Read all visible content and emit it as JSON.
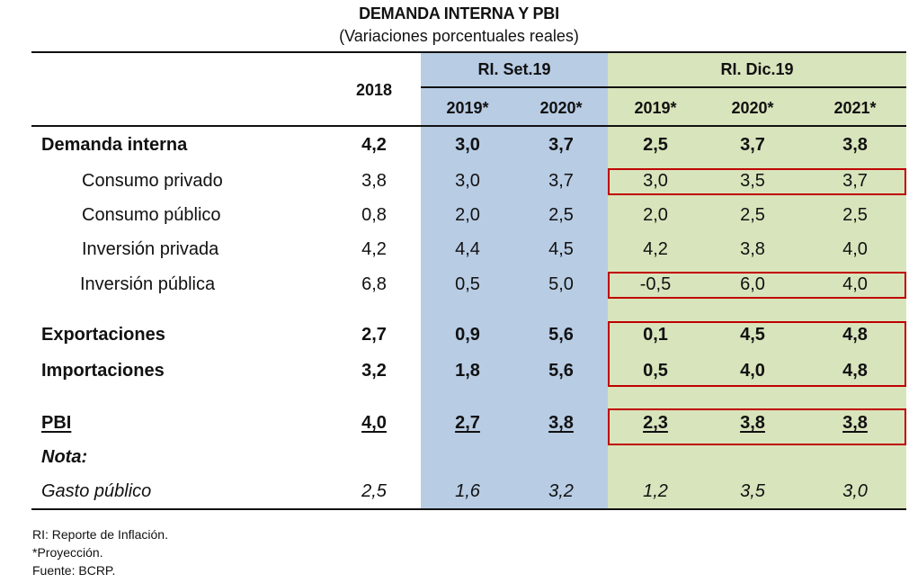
{
  "title": "DEMANDA INTERNA Y PBI",
  "subtitle": "(Variaciones porcentuales reales)",
  "header": {
    "col_2018": "2018",
    "group_set19": "RI. Set.19",
    "group_dic19": "RI. Dic.19",
    "set19_years": [
      "2019*",
      "2020*"
    ],
    "dic19_years": [
      "2019*",
      "2020*",
      "2021*"
    ]
  },
  "colors": {
    "set19_bg": "#b8cce4",
    "dic19_bg": "#d8e4bc",
    "highlight_border": "#c00000"
  },
  "rows": [
    {
      "label": "Demanda interna",
      "values": [
        "4,2",
        "3,0",
        "3,7",
        "2,5",
        "3,7",
        "3,8"
      ],
      "style": "bold"
    },
    {
      "label": "Consumo privado",
      "values": [
        "3,8",
        "3,0",
        "3,7",
        "3,0",
        "3,5",
        "3,7"
      ],
      "style": "indent"
    },
    {
      "label": "Consumo público",
      "values": [
        "0,8",
        "2,0",
        "2,5",
        "2,0",
        "2,5",
        "2,5"
      ],
      "style": "indent"
    },
    {
      "label": "Inversión privada",
      "values": [
        "4,2",
        "4,4",
        "4,5",
        "4,2",
        "3,8",
        "4,0"
      ],
      "style": "indent"
    },
    {
      "label": "Inversión pública",
      "values": [
        "6,8",
        "0,5",
        "5,0",
        "-0,5",
        "6,0",
        "4,0"
      ],
      "style": "indent"
    },
    {
      "label": "Exportaciones",
      "values": [
        "2,7",
        "0,9",
        "5,6",
        "0,1",
        "4,5",
        "4,8"
      ],
      "style": "bold"
    },
    {
      "label": "Importaciones",
      "values": [
        "3,2",
        "1,8",
        "5,6",
        "0,5",
        "4,0",
        "4,8"
      ],
      "style": "bold"
    },
    {
      "label": "PBI",
      "values": [
        "4,0",
        "2,7",
        "3,8",
        "2,3",
        "3,8",
        "3,8"
      ],
      "style": "bold-underline"
    },
    {
      "label": "Nota:",
      "values": [],
      "style": "bold-italic"
    },
    {
      "label": "Gasto público",
      "values": [
        "2,5",
        "1,6",
        "3,2",
        "1,2",
        "3,5",
        "3,0"
      ],
      "style": "italic"
    }
  ],
  "footnotes": [
    "RI: Reporte de Inflación.",
    "*Proyección.",
    "Fuente: BCRP."
  ]
}
